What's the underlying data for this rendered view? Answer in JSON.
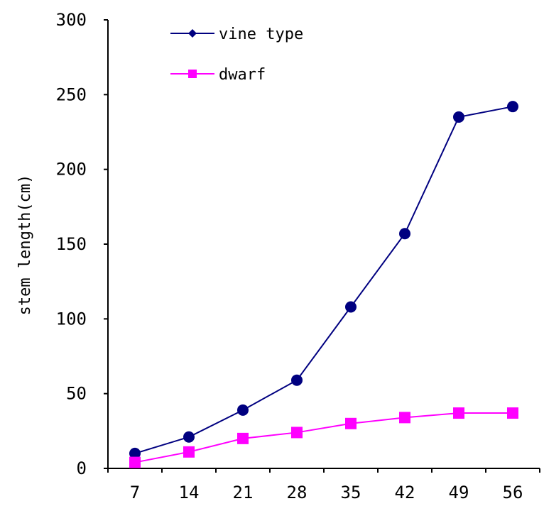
{
  "chart_data": {
    "type": "line",
    "x": [
      7,
      14,
      21,
      28,
      35,
      42,
      49,
      56
    ],
    "x_tick_labels": [
      "7",
      "14",
      "21",
      "28",
      "35",
      "42",
      "49",
      "56"
    ],
    "y_tick_labels": [
      "0",
      "50",
      "100",
      "150",
      "200",
      "250",
      "300"
    ],
    "ylim": [
      0,
      300
    ],
    "xlabel": "",
    "ylabel": "stem length(cm)",
    "grid": false,
    "legend_position": "top-left",
    "series": [
      {
        "name": "vine type",
        "values": [
          10,
          21,
          39,
          59,
          108,
          157,
          235,
          242
        ],
        "color": "#000080",
        "marker": "circle"
      },
      {
        "name": "dwarf",
        "values": [
          4,
          11,
          20,
          24,
          30,
          34,
          37,
          37
        ],
        "color": "#FF00FF",
        "marker": "square"
      }
    ]
  }
}
